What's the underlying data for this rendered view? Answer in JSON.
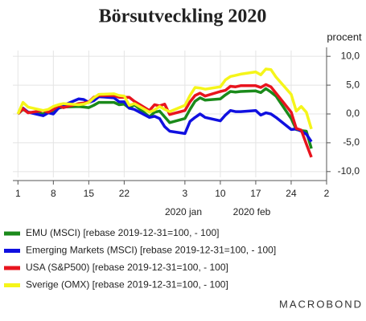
{
  "chart_data": {
    "type": "line",
    "title": "Börsutveckling 2020",
    "y_unit_label": "procent",
    "x": [
      "2020-01-01",
      "2020-01-02",
      "2020-01-03",
      "2020-01-06",
      "2020-01-07",
      "2020-01-08",
      "2020-01-09",
      "2020-01-10",
      "2020-01-13",
      "2020-01-14",
      "2020-01-15",
      "2020-01-16",
      "2020-01-17",
      "2020-01-20",
      "2020-01-21",
      "2020-01-22",
      "2020-01-23",
      "2020-01-24",
      "2020-01-27",
      "2020-01-28",
      "2020-01-29",
      "2020-01-30",
      "2020-01-31",
      "2020-02-03",
      "2020-02-04",
      "2020-02-05",
      "2020-02-06",
      "2020-02-07",
      "2020-02-10",
      "2020-02-11",
      "2020-02-12",
      "2020-02-13",
      "2020-02-14",
      "2020-02-17",
      "2020-02-18",
      "2020-02-19",
      "2020-02-20",
      "2020-02-21",
      "2020-02-24",
      "2020-02-25",
      "2020-02-26",
      "2020-02-27",
      "2020-02-28"
    ],
    "series": [
      {
        "name": "EMU (MSCI) [rebase 2019-12-31=100, - 100]",
        "color": "#1a8a1a",
        "values": [
          0,
          0.8,
          0.3,
          0,
          0.5,
          0.3,
          1.0,
          1.2,
          1.3,
          1.2,
          1.1,
          1.5,
          2.0,
          2.0,
          1.6,
          1.7,
          1.0,
          1.6,
          -0.5,
          0.3,
          0.5,
          -0.5,
          -1.5,
          -0.8,
          0.8,
          2.2,
          2.8,
          2.4,
          2.6,
          3.3,
          3.9,
          3.8,
          3.9,
          4.0,
          3.7,
          4.4,
          3.8,
          3.1,
          -0.8,
          -2.7,
          -2.9,
          -3.0,
          -6.0
        ]
      },
      {
        "name": "Emerging Markets (MSCI) [rebase 2019-12-31=100, - 100]",
        "color": "#1010e0",
        "values": [
          0,
          1.0,
          0.3,
          -0.3,
          0.2,
          0.0,
          1.0,
          1.5,
          2.6,
          2.5,
          2.0,
          2.3,
          3.0,
          2.8,
          2.1,
          2.1,
          1.0,
          0.8,
          -0.6,
          -0.4,
          -0.8,
          -2.2,
          -3.0,
          -3.4,
          -1.3,
          -0.6,
          0.0,
          -0.6,
          -1.2,
          -0.2,
          0.6,
          0.4,
          0.4,
          0.6,
          -0.2,
          0.2,
          0.0,
          -0.6,
          -2.7,
          -2.6,
          -3.0,
          -3.5,
          -4.8
        ]
      },
      {
        "name": "USA (S&P500) [rebase 2019-12-31=100, - 100]",
        "color": "#e8141e",
        "values": [
          0,
          0.9,
          0.2,
          0.6,
          0.3,
          0.8,
          1.4,
          1.1,
          1.8,
          1.9,
          2.1,
          2.9,
          3.2,
          3.2,
          2.9,
          2.9,
          2.9,
          2.2,
          0.6,
          1.6,
          1.4,
          1.7,
          -0.1,
          0.6,
          2.1,
          3.2,
          3.6,
          3.1,
          3.9,
          4.1,
          4.8,
          4.7,
          4.9,
          4.9,
          4.6,
          5.1,
          4.7,
          3.6,
          0.3,
          -2.5,
          -2.8,
          -5.2,
          -7.5
        ]
      },
      {
        "name": "Sverige (OMX) [rebase 2019-12-31=100, - 100]",
        "color": "#f5f51a",
        "values": [
          0,
          2.0,
          1.2,
          0.6,
          0.8,
          1.3,
          1.6,
          1.8,
          1.6,
          1.7,
          2.0,
          2.8,
          3.4,
          3.5,
          3.2,
          3.1,
          1.5,
          1.8,
          0.3,
          0.7,
          1.3,
          0.8,
          0.4,
          1.5,
          3.2,
          4.6,
          4.5,
          4.3,
          4.7,
          5.9,
          6.5,
          6.7,
          6.9,
          7.3,
          6.8,
          7.8,
          7.7,
          6.4,
          3.4,
          0.5,
          1.3,
          0.3,
          -2.6
        ]
      }
    ],
    "xlim": [
      "2019-12-31",
      "2020-03-02"
    ],
    "xticks": [
      {
        "value": "2020-01-01",
        "label": "1"
      },
      {
        "value": "2020-01-08",
        "label": "8"
      },
      {
        "value": "2020-01-15",
        "label": "15"
      },
      {
        "value": "2020-01-22",
        "label": "22"
      },
      {
        "value": "2020-02-03",
        "label": "3"
      },
      {
        "value": "2020-02-10",
        "label": "10"
      },
      {
        "value": "2020-02-17",
        "label": "17"
      },
      {
        "value": "2020-02-24",
        "label": "24"
      },
      {
        "value": "2020-03-02",
        "label": "2"
      }
    ],
    "x_group_labels": [
      "2020 jan",
      "2020 feb"
    ],
    "ylim": [
      -11,
      11
    ],
    "yticks": [
      {
        "value": 10,
        "label": "10,0"
      },
      {
        "value": 5,
        "label": "5,0"
      },
      {
        "value": 0,
        "label": "0,0"
      },
      {
        "value": -5,
        "label": "-5,0"
      },
      {
        "value": -10,
        "label": "-10,0"
      }
    ],
    "grid": true,
    "legend": "bottom",
    "logo": "MACROBOND"
  }
}
